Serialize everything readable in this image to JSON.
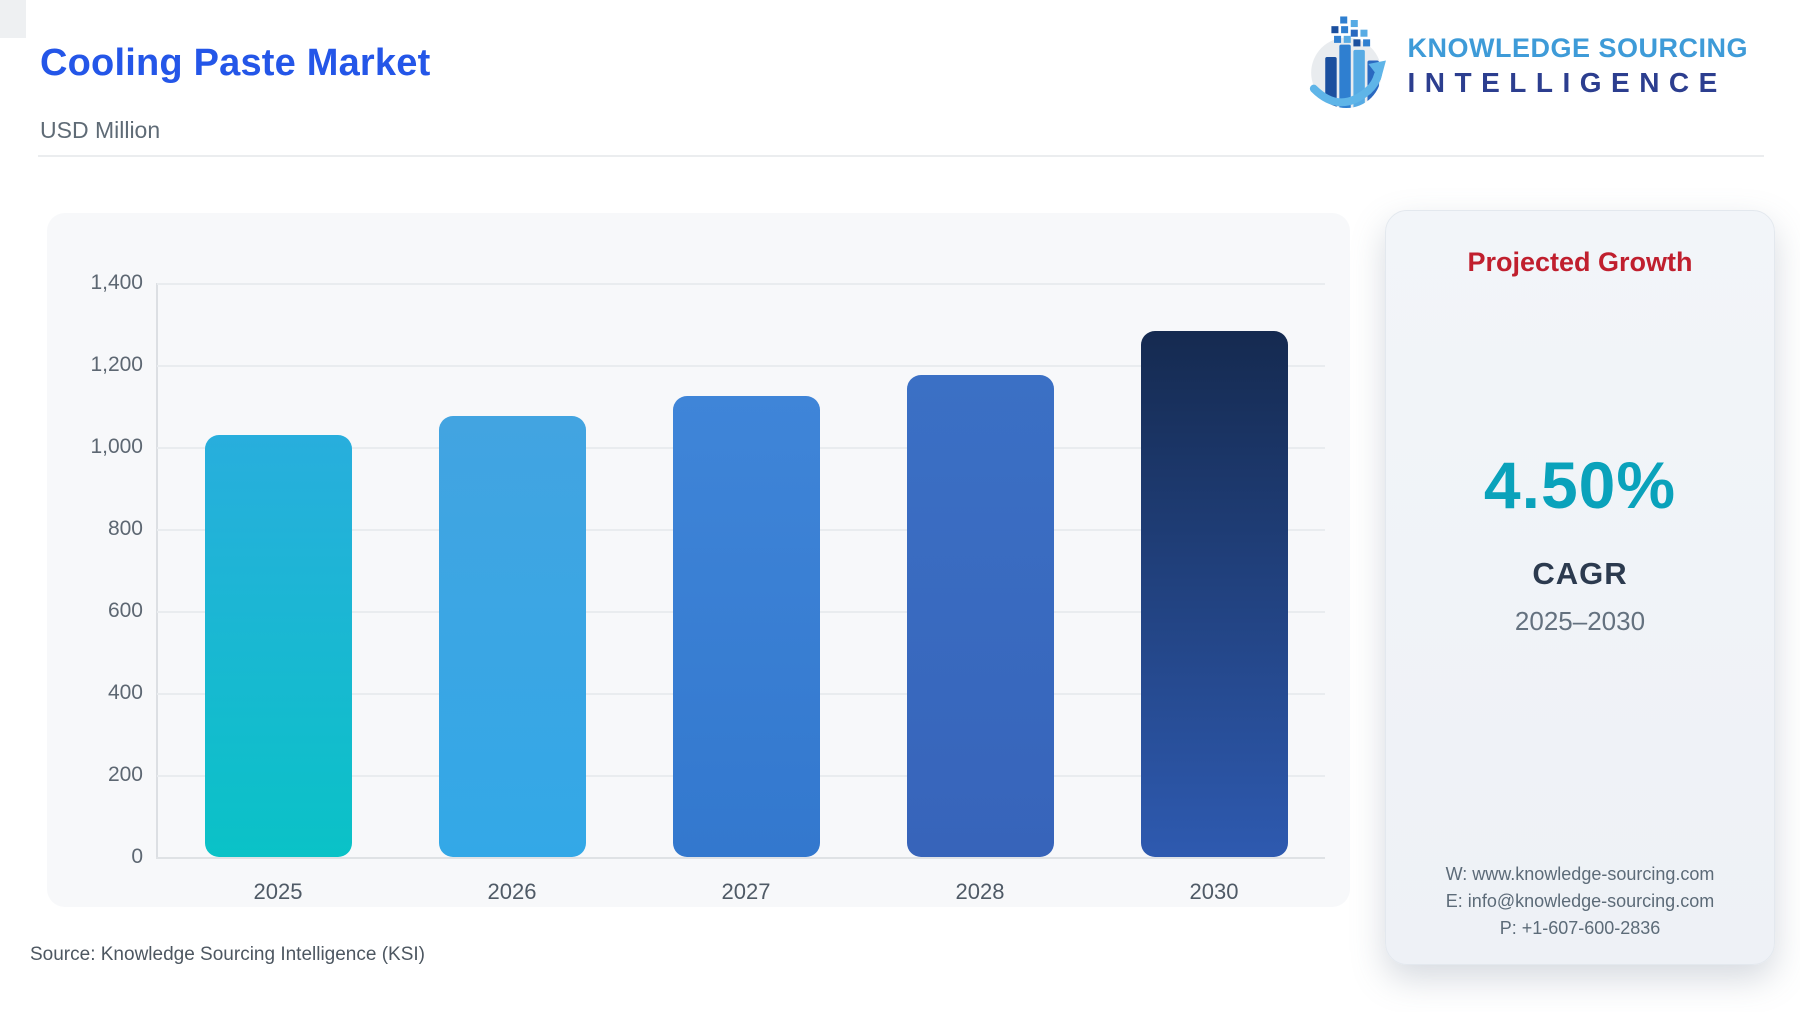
{
  "header": {
    "title": "Cooling Paste Market",
    "subtitle": "USD Million",
    "logo_line1": "KNOWLEDGE SOURCING",
    "logo_line2": "INTELLIGENCE"
  },
  "chart_data": {
    "type": "bar",
    "title": "Cooling Paste Market",
    "ylabel": "USD Million",
    "categories": [
      "2025",
      "2026",
      "2027",
      "2028",
      "2030"
    ],
    "values": [
      1030,
      1076,
      1125,
      1175,
      1284
    ],
    "ylim": [
      0,
      1400
    ],
    "ytick_step": 200,
    "yticks": [
      "1,400",
      "1,200",
      "1,000",
      "800",
      "600",
      "400",
      "200",
      "0"
    ],
    "grid": true,
    "legend": "none",
    "bar_gradients": [
      [
        "#28aedd",
        "#0ac2c7"
      ],
      [
        "#42a4e1",
        "#33a8e7"
      ],
      [
        "#3f85d8",
        "#3378ce"
      ],
      [
        "#3b70c5",
        "#3764ba"
      ],
      [
        "#152a50",
        "#2e5ab0"
      ]
    ]
  },
  "growth_card": {
    "heading": "Projected Growth",
    "cagr_value": "4.50%",
    "cagr_label": "CAGR",
    "period": "2025–2030",
    "contact_web": "W: www.knowledge-sourcing.com",
    "contact_email": "E: info@knowledge-sourcing.com",
    "contact_phone": "P: +1-607-600-2836"
  },
  "footer": {
    "source": "Source: Knowledge Sourcing Intelligence (KSI)"
  },
  "colors": {
    "title_blue": "#2456e8",
    "heading_red": "#c01f2e",
    "cagr_teal": "#0aa2bb",
    "logo_light_blue": "#3e9bd8",
    "logo_dark_blue": "#2c3e8f",
    "grid_gray": "#e9ecef"
  }
}
